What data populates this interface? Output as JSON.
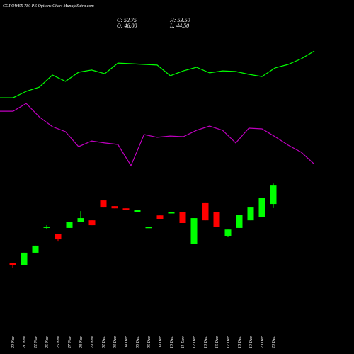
{
  "chart_data": [
    {
      "type": "candlestick",
      "title": "CGPOWER 780 PE Options Chart MunafaSutra.com",
      "header": [
        "C: 52.75",
        "H: 53.50",
        "O: 46.00",
        "L: 44.50"
      ],
      "categories": [
        "20 Nov",
        "21 Nov",
        "22 Nov",
        "25 Nov",
        "26 Nov",
        "27 Nov",
        "28 Nov",
        "29 Nov",
        "02 Dec",
        "03 Dec",
        "04 Dec",
        "05 Dec",
        "06 Dec",
        "09 Dec",
        "10 Dec",
        "11 Dec",
        "12 Dec",
        "13 Dec",
        "16 Dec",
        "17 Dec",
        "18 Dec",
        "19 Dec",
        "20 Dec",
        "23 Dec"
      ],
      "open": [
        24.2,
        23.4,
        28.1,
        37.2,
        35.1,
        37.2,
        39.5,
        40.0,
        47.3,
        45.2,
        44.4,
        42.9,
        37.2,
        41.8,
        42.6,
        42.9,
        31.2,
        46.3,
        42.9,
        34.3,
        37.2,
        40.0,
        41.3,
        46.0
      ],
      "high": [
        24.2,
        28.1,
        30.7,
        38.2,
        35.1,
        39.5,
        43.4,
        40.0,
        47.3,
        45.2,
        44.4,
        43.9,
        37.5,
        41.8,
        42.9,
        42.9,
        40.8,
        46.3,
        42.9,
        36.6,
        42.1,
        44.7,
        48.1,
        53.5
      ],
      "low": [
        22.6,
        23.4,
        28.1,
        36.9,
        32.2,
        37.2,
        39.5,
        38.2,
        44.7,
        44.4,
        43.9,
        42.9,
        37.2,
        40.3,
        42.6,
        39.0,
        31.2,
        40.0,
        37.7,
        33.8,
        37.2,
        40.0,
        41.3,
        44.5
      ],
      "close": [
        23.4,
        28.1,
        30.7,
        37.7,
        33.0,
        39.5,
        40.8,
        38.2,
        44.7,
        44.4,
        43.9,
        43.9,
        37.5,
        40.3,
        42.9,
        39.0,
        40.8,
        40.0,
        37.7,
        36.6,
        42.1,
        44.7,
        48.1,
        52.75
      ],
      "up_color": "#00ff00",
      "down_color": "#ff0000",
      "ylim": [
        19.5,
        55.9
      ]
    },
    {
      "type": "line",
      "series": [
        {
          "color": "#00ff00",
          "values": [
            58.9,
            58.9,
            63.7,
            66.8,
            75.8,
            71.1,
            77.9,
            79.5,
            76.8,
            84.7,
            84.2,
            83.7,
            83.2,
            75.3,
            78.9,
            81.6,
            77.4,
            78.9,
            78.4,
            76.3,
            74.7,
            81.1,
            83.7,
            87.9,
            93.7
          ]
        },
        {
          "color": "#c000c0",
          "values": [
            48.9,
            48.9,
            54.7,
            44.7,
            37.4,
            33.7,
            22.6,
            26.8,
            25.3,
            24.2,
            8.4,
            31.6,
            29.5,
            30.5,
            30.0,
            34.7,
            37.9,
            34.7,
            25.3,
            36.3,
            35.8,
            30.0,
            23.7,
            18.4,
            9.5
          ]
        }
      ],
      "ylim": [
        0,
        100
      ]
    }
  ]
}
